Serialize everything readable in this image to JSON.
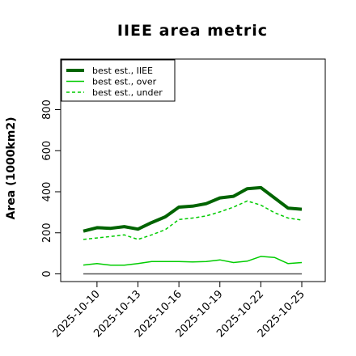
{
  "chart_data": {
    "type": "line",
    "title": "IIEE area metric",
    "xlabel": "",
    "ylabel": "Area (1000km2)",
    "x": [
      "2025-10-09",
      "2025-10-10",
      "2025-10-11",
      "2025-10-12",
      "2025-10-13",
      "2025-10-14",
      "2025-10-15",
      "2025-10-16",
      "2025-10-17",
      "2025-10-18",
      "2025-10-19",
      "2025-10-20",
      "2025-10-21",
      "2025-10-22",
      "2025-10-23",
      "2025-10-24",
      "2025-10-25"
    ],
    "x_tick_labels": [
      "2025-10-10",
      "2025-10-13",
      "2025-10-16",
      "2025-10-19",
      "2025-10-22",
      "2025-10-25"
    ],
    "y_ticks": [
      0,
      200,
      400,
      600,
      800
    ],
    "ylim": [
      -25,
      1040
    ],
    "grid": false,
    "legend_position": "top-left",
    "series": [
      {
        "name": "best est., IIEE",
        "color": "#006400",
        "style": "solid-thick",
        "values": [
          208,
          225,
          222,
          230,
          218,
          250,
          278,
          325,
          330,
          342,
          370,
          378,
          415,
          420,
          370,
          320,
          315
        ]
      },
      {
        "name": "best est., over",
        "color": "#00cc00",
        "style": "solid-thin",
        "values": [
          43,
          50,
          42,
          42,
          50,
          60,
          60,
          60,
          58,
          60,
          68,
          55,
          62,
          85,
          80,
          50,
          55
        ]
      },
      {
        "name": "best est., under",
        "color": "#00cc00",
        "style": "dashed",
        "values": [
          168,
          175,
          182,
          190,
          168,
          190,
          215,
          265,
          272,
          282,
          302,
          325,
          355,
          335,
          298,
          272,
          262
        ]
      },
      {
        "name": "",
        "color": "#555555",
        "style": "solid-thin",
        "values": [
          0,
          0,
          0,
          0,
          0,
          0,
          0,
          0,
          0,
          0,
          0,
          0,
          0,
          0,
          0,
          0,
          0
        ]
      }
    ]
  }
}
